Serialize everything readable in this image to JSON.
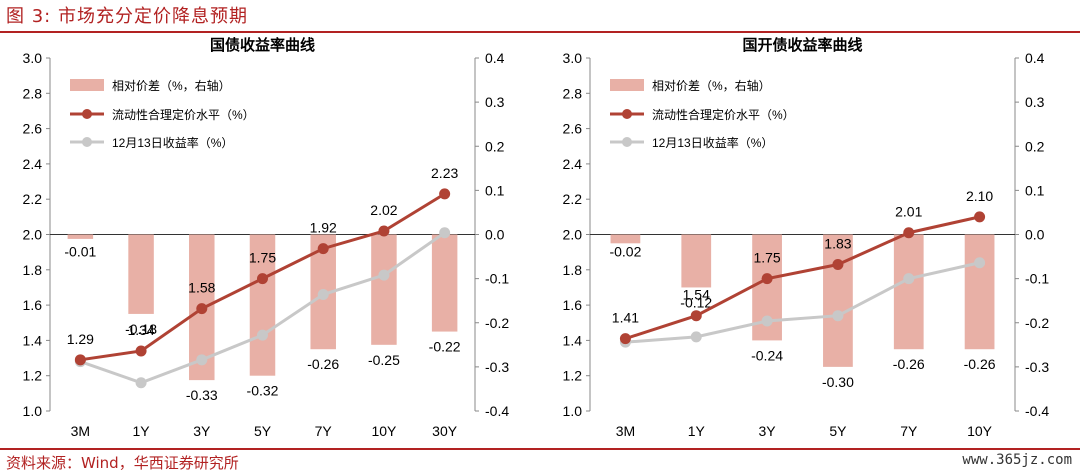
{
  "figure": {
    "title": "图 3:  市场充分定价降息预期",
    "source": "资料来源：Wind，华西证券研究所",
    "watermark": "www.365jz.com"
  },
  "colors": {
    "accent": "#b22222",
    "bar": "#e8b0a6",
    "fair": "#b04234",
    "actual": "#c8c8c8"
  },
  "chart_data": [
    {
      "type": "bar+line",
      "title": "国债收益率曲线",
      "categories": [
        "3M",
        "1Y",
        "3Y",
        "5Y",
        "7Y",
        "10Y",
        "30Y"
      ],
      "left_axis": {
        "min": 1.0,
        "max": 3.0,
        "step": 0.2,
        "ticks": [
          "1.0",
          "1.2",
          "1.4",
          "1.6",
          "1.8",
          "2.0",
          "2.2",
          "2.4",
          "2.6",
          "2.8",
          "3.0"
        ]
      },
      "right_axis": {
        "min": -0.4,
        "max": 0.4,
        "step": 0.1,
        "ticks": [
          "-0.4",
          "-0.3",
          "-0.2",
          "-0.1",
          "0.0",
          "0.1",
          "0.2",
          "0.3",
          "0.4"
        ]
      },
      "legend": [
        "相对价差（%，右轴）",
        "流动性合理定价水平（%）",
        "12月13日收益率（%）"
      ],
      "series": [
        {
          "name": "相对价差（%，右轴）",
          "kind": "bar",
          "axis": "right",
          "values": [
            -0.01,
            -0.18,
            -0.33,
            -0.32,
            -0.26,
            -0.25,
            -0.22
          ],
          "labels": [
            "-0.01",
            "-0.18",
            "-0.33",
            "-0.32",
            "-0.26",
            "-0.25",
            "-0.22"
          ]
        },
        {
          "name": "流动性合理定价水平（%）",
          "kind": "line",
          "axis": "left",
          "values": [
            1.29,
            1.34,
            1.58,
            1.75,
            1.92,
            2.02,
            2.23
          ],
          "labels": [
            "1.29",
            "1.34",
            "1.58",
            "1.75",
            "1.92",
            "2.02",
            "2.23"
          ]
        },
        {
          "name": "12月13日收益率（%）",
          "kind": "line",
          "axis": "left",
          "values": [
            1.28,
            1.16,
            1.29,
            1.43,
            1.66,
            1.77,
            2.01
          ]
        }
      ]
    },
    {
      "type": "bar+line",
      "title": "国开债收益率曲线",
      "categories": [
        "3M",
        "1Y",
        "3Y",
        "5Y",
        "7Y",
        "10Y"
      ],
      "left_axis": {
        "min": 1.0,
        "max": 3.0,
        "step": 0.2,
        "ticks": [
          "1.0",
          "1.2",
          "1.4",
          "1.6",
          "1.8",
          "2.0",
          "2.2",
          "2.4",
          "2.6",
          "2.8",
          "3.0"
        ]
      },
      "right_axis": {
        "min": -0.4,
        "max": 0.4,
        "step": 0.1,
        "ticks": [
          "-0.4",
          "-0.3",
          "-0.2",
          "-0.1",
          "0.0",
          "0.1",
          "0.2",
          "0.3",
          "0.4"
        ]
      },
      "legend": [
        "相对价差（%，右轴）",
        "流动性合理定价水平（%）",
        "12月13日收益率（%）"
      ],
      "series": [
        {
          "name": "相对价差（%，右轴）",
          "kind": "bar",
          "axis": "right",
          "values": [
            -0.02,
            -0.12,
            -0.24,
            -0.3,
            -0.26,
            -0.26
          ],
          "labels": [
            "-0.02",
            "-0.12",
            "-0.24",
            "-0.30",
            "-0.26",
            "-0.26"
          ]
        },
        {
          "name": "流动性合理定价水平（%）",
          "kind": "line",
          "axis": "left",
          "values": [
            1.41,
            1.54,
            1.75,
            1.83,
            2.01,
            2.1
          ],
          "labels": [
            "1.41",
            "1.54",
            "1.75",
            "1.83",
            "2.01",
            "2.10"
          ]
        },
        {
          "name": "12月13日收益率（%）",
          "kind": "line",
          "axis": "left",
          "values": [
            1.39,
            1.42,
            1.51,
            1.54,
            1.75,
            1.84
          ]
        }
      ]
    }
  ]
}
